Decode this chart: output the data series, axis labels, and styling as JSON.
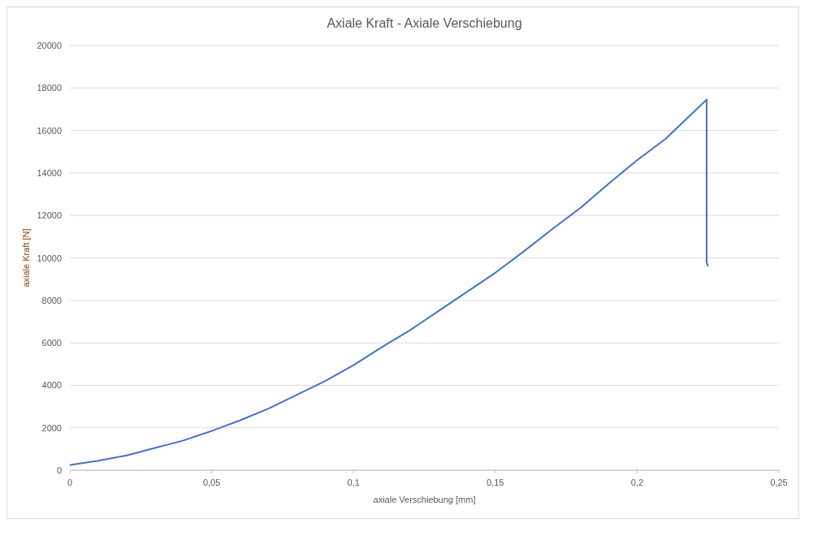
{
  "chart_data": {
    "type": "line",
    "title": "Axiale Kraft - Axiale Verschiebung",
    "xlabel": "axiale Verschiebung [mm]",
    "ylabel": "axiale Kraft [N]",
    "series": [
      {
        "color": "#4472c4",
        "x": [
          0,
          0.01,
          0.02,
          0.03,
          0.04,
          0.05,
          0.06,
          0.07,
          0.08,
          0.09,
          0.1,
          0.11,
          0.12,
          0.13,
          0.14,
          0.15,
          0.16,
          0.17,
          0.18,
          0.19,
          0.2,
          0.21,
          0.2245,
          0.2245,
          0.225
        ],
        "values": [
          250,
          450,
          700,
          1050,
          1400,
          1850,
          2350,
          2900,
          3550,
          4200,
          4950,
          5800,
          6600,
          7500,
          8400,
          9300,
          10300,
          11350,
          12350,
          13500,
          14600,
          15600,
          17450,
          9800,
          9600
        ]
      }
    ],
    "xlim": [
      0,
      0.25
    ],
    "xticks": [
      {
        "value": 0,
        "label": "0"
      },
      {
        "value": 0.05,
        "label": "0,05"
      },
      {
        "value": 0.1,
        "label": "0,1"
      },
      {
        "value": 0.15,
        "label": "0,15"
      },
      {
        "value": 0.2,
        "label": "0,2"
      },
      {
        "value": 0.25,
        "label": "0,25"
      }
    ],
    "ylim": [
      0,
      20000
    ],
    "yticks": [
      0,
      2000,
      4000,
      6000,
      8000,
      10000,
      12000,
      14000,
      16000,
      18000,
      20000
    ],
    "grid": "y"
  }
}
